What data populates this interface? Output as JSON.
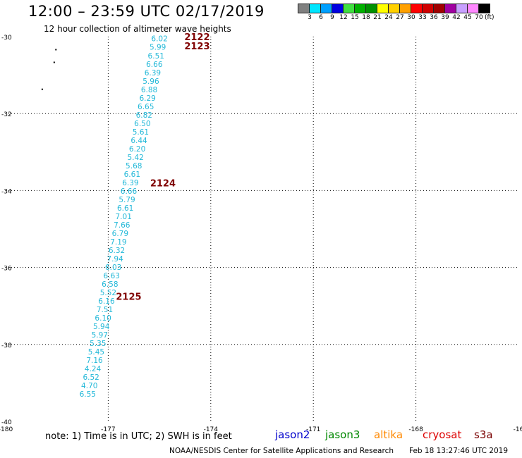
{
  "title": "12:00 – 23:59 UTC 02/17/2019",
  "subtitle": "12 hour collection of altimeter wave heights",
  "legend": {
    "colors": [
      "#808080",
      "#00e5ff",
      "#00a0ff",
      "#0000e0",
      "#40e040",
      "#00b000",
      "#009000",
      "#ffff00",
      "#ffd000",
      "#ffa000",
      "#ff0000",
      "#d00000",
      "#a00000",
      "#a000a0",
      "#c8a0ff",
      "#ff88ff",
      "#000000"
    ],
    "labels": [
      "3",
      "6",
      "9",
      "12",
      "15",
      "18",
      "21",
      "24",
      "27",
      "30",
      "33",
      "36",
      "39",
      "42",
      "45",
      "70"
    ],
    "unit": "(ft)"
  },
  "note": "note:  1) Time is in UTC; 2) SWH is in feet",
  "satellites": [
    {
      "name": "jason2",
      "color": "#0000cc"
    },
    {
      "name": "jason3",
      "color": "#008800"
    },
    {
      "name": "altika",
      "color": "#ff8800"
    },
    {
      "name": "cryosat",
      "color": "#dd0000"
    },
    {
      "name": "s3a",
      "color": "#7a0000"
    }
  ],
  "footer": "NOAA/NESDIS Center for Satellite Applications and Research",
  "footer_time": "Feb 18 13:27:46 UTC 2019",
  "map": {
    "lon_range": [
      -180,
      -165
    ],
    "lat_range": [
      -40,
      -30
    ],
    "x_ticks": [
      "-180",
      "-177",
      "-174",
      "-171",
      "-168",
      "-16"
    ],
    "y_ticks": [
      "-30",
      "-32",
      "-34",
      "-36",
      "-38",
      "-40"
    ],
    "track_color": "#22b8d8",
    "time_label_color": "#800000",
    "measurements": [
      {
        "lon": -175.5,
        "lat": -30.05,
        "swh": "6.02"
      },
      {
        "lon": -175.55,
        "lat": -30.27,
        "swh": "5.99"
      },
      {
        "lon": -175.6,
        "lat": -30.49,
        "swh": "6.51"
      },
      {
        "lon": -175.65,
        "lat": -30.71,
        "swh": "6.66"
      },
      {
        "lon": -175.7,
        "lat": -30.93,
        "swh": "6.39"
      },
      {
        "lon": -175.75,
        "lat": -31.15,
        "swh": "5.96"
      },
      {
        "lon": -175.8,
        "lat": -31.37,
        "swh": "6.88"
      },
      {
        "lon": -175.85,
        "lat": -31.59,
        "swh": "6.29"
      },
      {
        "lon": -175.9,
        "lat": -31.81,
        "swh": "6.65"
      },
      {
        "lon": -175.95,
        "lat": -32.03,
        "swh": "6.82"
      },
      {
        "lon": -176.0,
        "lat": -32.25,
        "swh": "6.50"
      },
      {
        "lon": -176.05,
        "lat": -32.47,
        "swh": "5.61"
      },
      {
        "lon": -176.1,
        "lat": -32.69,
        "swh": "6.44"
      },
      {
        "lon": -176.15,
        "lat": -32.91,
        "swh": "6.20"
      },
      {
        "lon": -176.2,
        "lat": -33.13,
        "swh": "5.42"
      },
      {
        "lon": -176.25,
        "lat": -33.35,
        "swh": "5.68"
      },
      {
        "lon": -176.3,
        "lat": -33.57,
        "swh": "6.61"
      },
      {
        "lon": -176.35,
        "lat": -33.79,
        "swh": "6.39"
      },
      {
        "lon": -176.4,
        "lat": -34.01,
        "swh": "6.66"
      },
      {
        "lon": -176.45,
        "lat": -34.23,
        "swh": "5.79"
      },
      {
        "lon": -176.5,
        "lat": -34.45,
        "swh": "6.61"
      },
      {
        "lon": -176.55,
        "lat": -34.67,
        "swh": "7.01"
      },
      {
        "lon": -176.6,
        "lat": -34.89,
        "swh": "7.66"
      },
      {
        "lon": -176.65,
        "lat": -35.11,
        "swh": "6.79"
      },
      {
        "lon": -176.7,
        "lat": -35.33,
        "swh": "7.19"
      },
      {
        "lon": -176.75,
        "lat": -35.55,
        "swh": "6.32"
      },
      {
        "lon": -176.8,
        "lat": -35.77,
        "swh": "7.94"
      },
      {
        "lon": -176.85,
        "lat": -35.99,
        "swh": "6.03"
      },
      {
        "lon": -176.9,
        "lat": -36.21,
        "swh": "6.63"
      },
      {
        "lon": -176.95,
        "lat": -36.43,
        "swh": "6.58"
      },
      {
        "lon": -177.0,
        "lat": -36.65,
        "swh": "5.52"
      },
      {
        "lon": -177.05,
        "lat": -36.87,
        "swh": "6.16"
      },
      {
        "lon": -177.1,
        "lat": -37.09,
        "swh": "7.51"
      },
      {
        "lon": -177.15,
        "lat": -37.31,
        "swh": "6.10"
      },
      {
        "lon": -177.2,
        "lat": -37.53,
        "swh": "5.94"
      },
      {
        "lon": -177.25,
        "lat": -37.75,
        "swh": "5.97"
      },
      {
        "lon": -177.3,
        "lat": -37.97,
        "swh": "5.35"
      },
      {
        "lon": -177.35,
        "lat": -38.19,
        "swh": "5.45"
      },
      {
        "lon": -177.4,
        "lat": -38.41,
        "swh": "7.16"
      },
      {
        "lon": -177.45,
        "lat": -38.63,
        "swh": "4.24"
      },
      {
        "lon": -177.5,
        "lat": -38.85,
        "swh": "6.52"
      },
      {
        "lon": -177.55,
        "lat": -39.07,
        "swh": "4.70"
      },
      {
        "lon": -177.6,
        "lat": -39.29,
        "swh": "6.55"
      }
    ],
    "time_labels": [
      {
        "lon": -174.4,
        "lat": -30.0,
        "text": "2122"
      },
      {
        "lon": -174.4,
        "lat": -30.24,
        "text": "2123"
      },
      {
        "lon": -175.4,
        "lat": -33.8,
        "text": "2124"
      },
      {
        "lon": -176.4,
        "lat": -36.75,
        "text": "2125"
      }
    ],
    "islands": [
      {
        "lon": -178.55,
        "lat": -30.32
      },
      {
        "lon": -178.6,
        "lat": -30.65
      },
      {
        "lon": -178.95,
        "lat": -31.35
      }
    ]
  }
}
